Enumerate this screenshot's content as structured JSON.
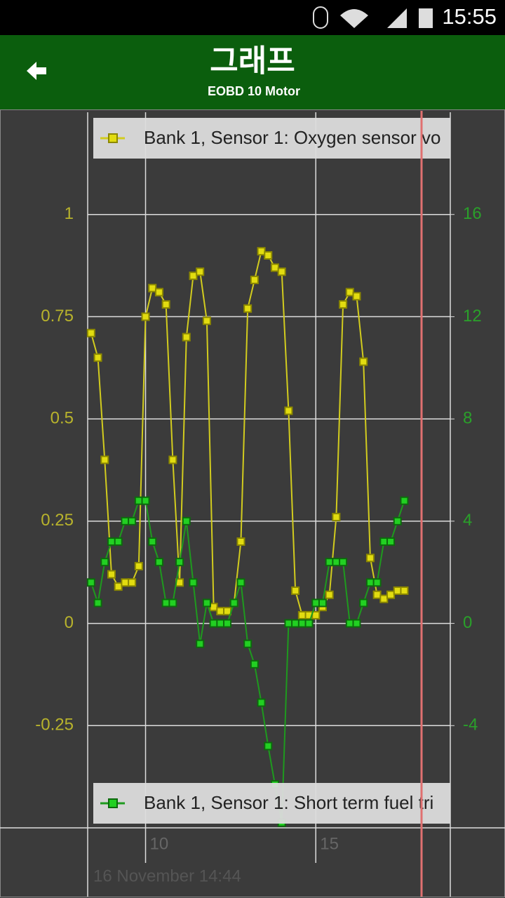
{
  "status_bar": {
    "time": "15:55"
  },
  "app_bar": {
    "title": "그래프",
    "subtitle": "EOBD 10 Motor"
  },
  "chart_data": {
    "type": "line",
    "x_label": "16 November 14:44",
    "x": [
      8.4,
      8.6,
      8.8,
      9.0,
      9.2,
      9.4,
      9.6,
      9.8,
      10.0,
      10.2,
      10.4,
      10.6,
      10.8,
      11.0,
      11.2,
      11.4,
      11.6,
      11.8,
      12.0,
      12.2,
      12.4,
      12.6,
      12.8,
      13.0,
      13.2,
      13.4,
      13.6,
      13.8,
      14.0,
      14.2,
      14.4,
      14.6,
      14.8,
      15.0,
      15.2,
      15.4,
      15.6,
      15.8,
      16.0,
      16.2,
      16.4,
      16.6,
      16.8,
      17.0,
      17.2,
      17.4,
      17.6
    ],
    "series": [
      {
        "name": "Bank 1, Sensor 1: Oxygen sensor vo",
        "color": "#d2cc1e",
        "axis": "y",
        "values": [
          0.71,
          0.65,
          0.4,
          0.12,
          0.09,
          0.1,
          0.1,
          0.14,
          0.75,
          0.82,
          0.81,
          0.78,
          0.4,
          0.1,
          0.7,
          0.85,
          0.86,
          0.74,
          0.04,
          0.03,
          0.03,
          0.05,
          0.2,
          0.77,
          0.84,
          0.91,
          0.9,
          0.87,
          0.86,
          0.52,
          0.08,
          0.02,
          0.02,
          0.02,
          0.04,
          0.07,
          0.26,
          0.78,
          0.81,
          0.8,
          0.64,
          0.16,
          0.07,
          0.06,
          0.07,
          0.08,
          0.08
        ]
      },
      {
        "name": "Bank 1, Sensor 1: Short term fuel tri",
        "color": "#1e9a1e",
        "axis": "y2",
        "values": [
          1.6,
          0.8,
          2.4,
          3.2,
          3.2,
          4,
          4,
          4.8,
          4.8,
          3.2,
          2.4,
          0.8,
          0.8,
          2.4,
          4,
          1.6,
          -0.8,
          0.8,
          0,
          0,
          0,
          0.8,
          1.6,
          -0.8,
          -1.6,
          -3.1,
          -4.8,
          -6.3,
          -7.8,
          0,
          0,
          0,
          0,
          0.8,
          0.8,
          2.4,
          2.4,
          2.4,
          0,
          0,
          0.8,
          1.6,
          1.6,
          3.2,
          3.2,
          4,
          4.8
        ]
      }
    ],
    "xlim": [
      8.3,
      18.95
    ],
    "xticks": [
      10,
      15
    ],
    "ylim": [
      -0.5,
      1.25
    ],
    "yticks": [
      1,
      0.75,
      0.5,
      0.25,
      0,
      -0.25
    ],
    "y2lim": [
      -8,
      20
    ],
    "y2ticks": [
      16,
      12,
      8,
      4,
      0,
      -4
    ],
    "grid": true
  }
}
